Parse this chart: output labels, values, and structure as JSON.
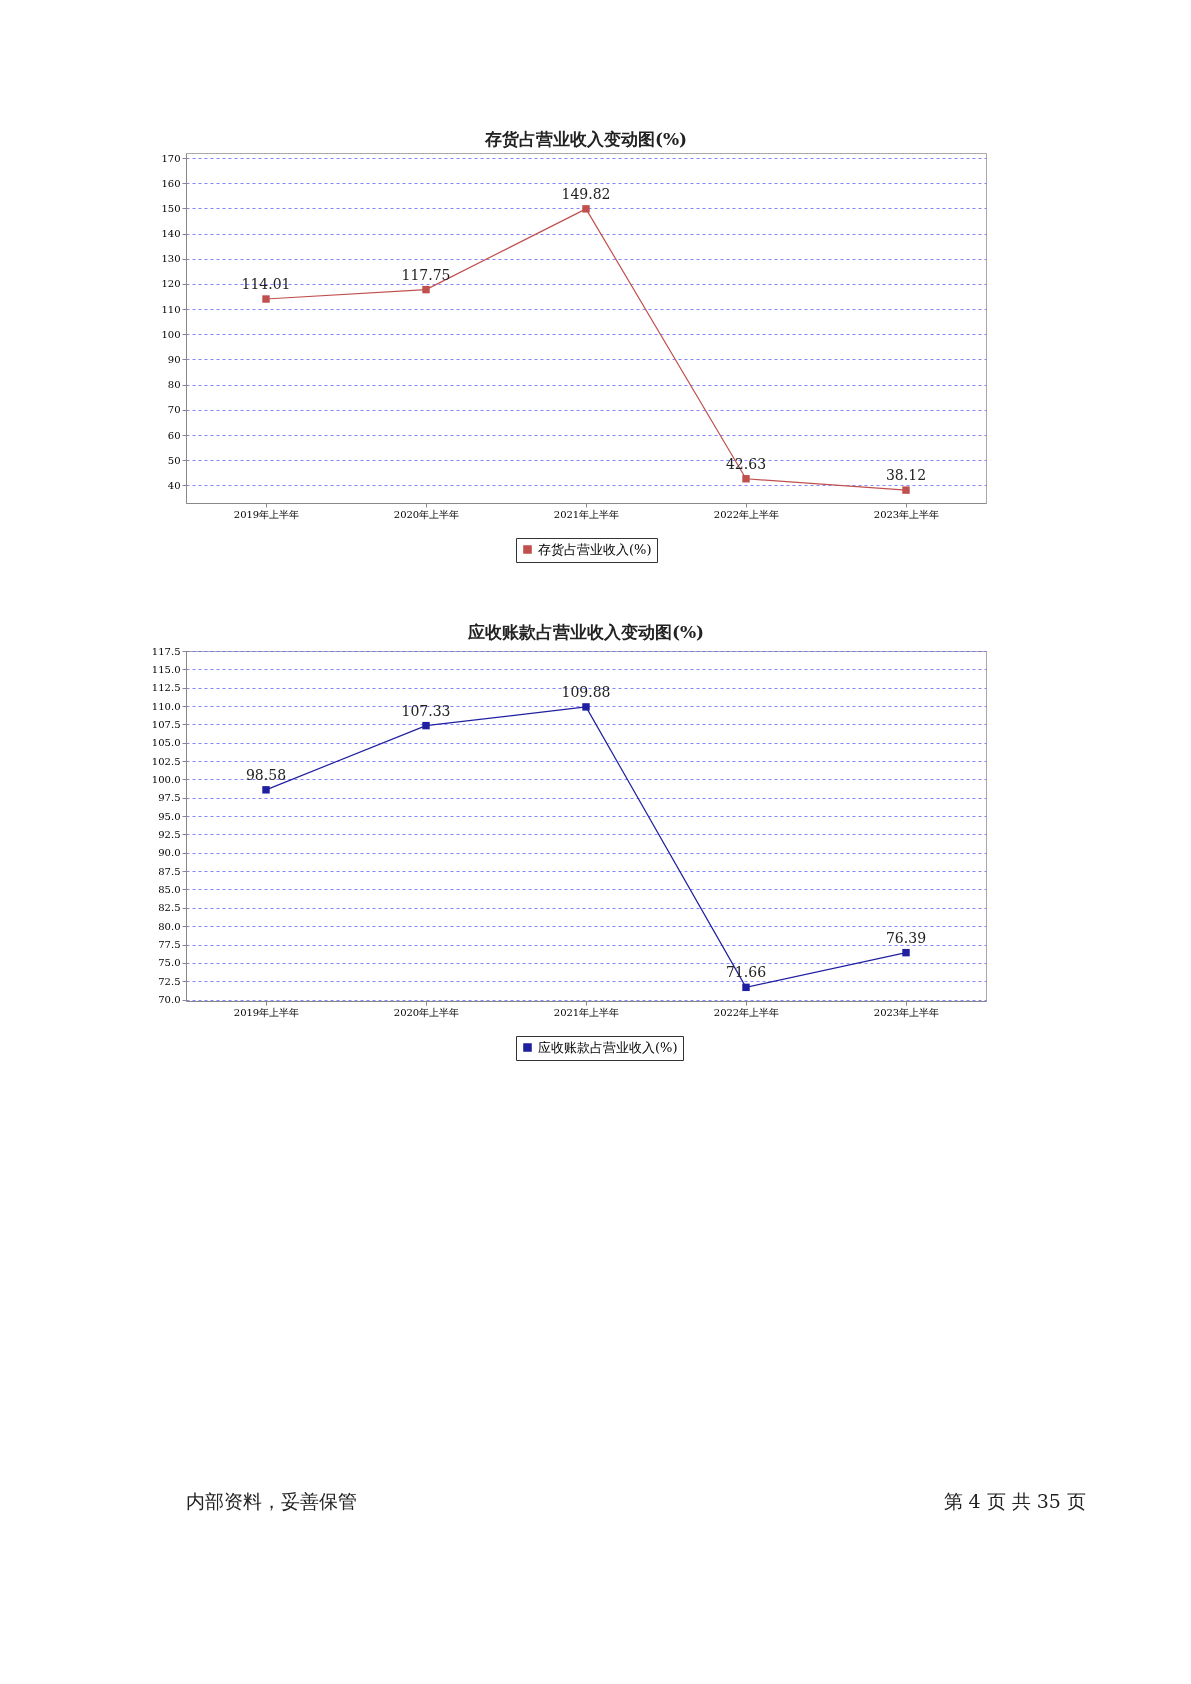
{
  "chart_data": [
    {
      "type": "line",
      "title": "存货占营业收入变动图(%)",
      "categories": [
        "2019年上半年",
        "2020年上半年",
        "2021年上半年",
        "2022年上半年",
        "2023年上半年"
      ],
      "series": [
        {
          "name": "存货占营业收入(%)",
          "color": "#c0504d",
          "values": [
            114.01,
            117.75,
            149.82,
            42.63,
            38.12
          ]
        }
      ],
      "ylim": [
        33,
        172
      ],
      "yticks": [
        40,
        50,
        60,
        70,
        80,
        90,
        100,
        110,
        120,
        130,
        140,
        150,
        160,
        170
      ],
      "grid": "y",
      "legend": "bottom",
      "marker": "square",
      "line_style": "solid",
      "data_labels": true
    },
    {
      "type": "line",
      "title": "应收账款占营业收入变动图(%)",
      "categories": [
        "2019年上半年",
        "2020年上半年",
        "2021年上半年",
        "2022年上半年",
        "2023年上半年"
      ],
      "series": [
        {
          "name": "应收账款占营业收入(%)",
          "color": "#1f1fa0",
          "values": [
            98.58,
            107.33,
            109.88,
            71.66,
            76.39
          ]
        }
      ],
      "ylim": [
        69.8,
        117.5
      ],
      "yticks": [
        {
          "value": 70,
          "label": "70.0"
        },
        72.5,
        {
          "value": 75,
          "label": "75.0"
        },
        77.5,
        {
          "value": 80,
          "label": "80.0"
        },
        82.5,
        {
          "value": 85,
          "label": "85.0"
        },
        87.5,
        {
          "value": 90,
          "label": "90.0"
        },
        92.5,
        {
          "value": 95,
          "label": "95.0"
        },
        97.5,
        {
          "value": 100,
          "label": "100.0"
        },
        102.5,
        {
          "value": 105,
          "label": "105.0"
        },
        107.5,
        {
          "value": 110,
          "label": "110.0"
        },
        112.5,
        {
          "value": 115,
          "label": "115.0"
        },
        117.5
      ],
      "grid": "y",
      "legend": "bottom",
      "marker": "square",
      "line_style": "solid",
      "data_labels": true,
      "annotations": [
        "内部资料，妥善保管",
        "第 4 页   共 35 页"
      ]
    }
  ]
}
